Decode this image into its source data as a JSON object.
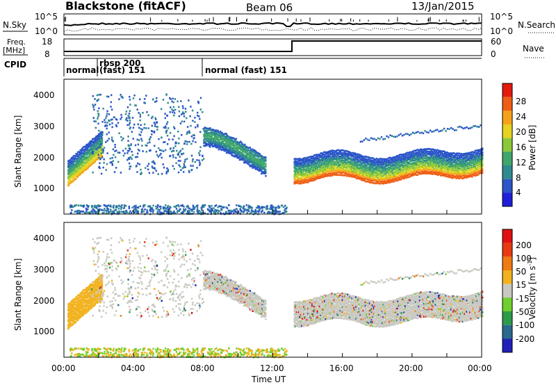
{
  "header": {
    "title": "Blackstone (fitACF)",
    "beam": "Beam 06",
    "date": "13/Jan/2015"
  },
  "summary_panels": {
    "nsky_label": "N.Sky",
    "nsky_ticks": [
      "10^5",
      "10^0"
    ],
    "nsearch_label": "N.Search",
    "freq_label": "Freq.",
    "freq_unit": "[MHz]",
    "freq_ticks": [
      "18",
      "8"
    ],
    "nave_label": "Nave",
    "nave_ticks": [
      "60",
      "0"
    ],
    "cpid_label": "CPID",
    "cpid_segments": [
      {
        "label": "normal",
        "start_h": 0.0
      },
      {
        "label": "rbsp 200",
        "label2": "(fast) 151",
        "start_h": 1.9
      },
      {
        "label": "normal (fast)  151",
        "start_h": 8.0
      }
    ],
    "freq_switch_hour": 13.1
  },
  "chart_data": [
    {
      "type": "heatmap",
      "name": "power",
      "ylabel": "Slant Range [km]",
      "xlabel": "Time UT",
      "x_ticks": [
        "00:00",
        "04:00",
        "08:00",
        "12:00",
        "16:00",
        "20:00",
        "00:00"
      ],
      "xlim_hours": [
        0,
        24
      ],
      "y_ticks": [
        "4000",
        "3000",
        "2000",
        "1000"
      ],
      "ylim": [
        180,
        4560
      ],
      "colorbar_label": "Power [dB]",
      "colorbar_ticks": [
        "28",
        "24",
        "20",
        "16",
        "12",
        "8",
        "4"
      ],
      "colorbar_range": [
        0,
        32
      ],
      "colors": [
        "#1f1fd8",
        "#2b55c8",
        "#2e8a8e",
        "#3fa66b",
        "#8bc83a",
        "#e6d21f",
        "#f5a21a",
        "#ef5d14",
        "#e51a0f"
      ]
    },
    {
      "type": "heatmap",
      "name": "velocity",
      "ylabel": "Slant Range [km]",
      "xlabel": "Time UT",
      "x_ticks": [
        "00:00",
        "04:00",
        "08:00",
        "12:00",
        "16:00",
        "20:00",
        "00:00"
      ],
      "xlim_hours": [
        0,
        24
      ],
      "y_ticks": [
        "4000",
        "3000",
        "2000",
        "1000"
      ],
      "ylim": [
        180,
        4560
      ],
      "colorbar_label": "Velocity [m s",
      "colorbar_label_sup": "-1",
      "colorbar_ticks": [
        "200",
        "100",
        "50",
        "15",
        "-15",
        "-50",
        "-100",
        "-200"
      ],
      "colors": [
        "#2020b8",
        "#2a6a8e",
        "#2e9a4a",
        "#6fcf2e",
        "#c8c8c0",
        "#f2b21e",
        "#f07a14",
        "#e83a10",
        "#e01010"
      ]
    }
  ]
}
